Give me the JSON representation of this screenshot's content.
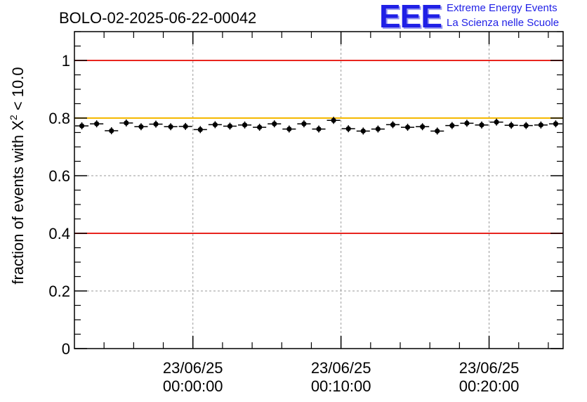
{
  "chart_data": {
    "type": "scatter",
    "title": "BOLO-02-2025-06-22-00042",
    "ylabel": "fraction of events with X² < 10.0",
    "ylabel_parts": {
      "pre": "fraction of events with X",
      "sup": "2",
      "post": " < 10.0"
    },
    "ylim": [
      0,
      1.1
    ],
    "xlim_minutes": [
      -8,
      25
    ],
    "y_ticks": [
      {
        "value": 0,
        "label": "0"
      },
      {
        "value": 0.2,
        "label": "0.2"
      },
      {
        "value": 0.4,
        "label": "0.4"
      },
      {
        "value": 0.6,
        "label": "0.6"
      },
      {
        "value": 0.8,
        "label": "0.8"
      },
      {
        "value": 1.0,
        "label": "1"
      }
    ],
    "x_ticks": [
      {
        "minutes": 0,
        "date": "23/06/25",
        "time": "00:00:00"
      },
      {
        "minutes": 10,
        "date": "23/06/25",
        "time": "00:10:00"
      },
      {
        "minutes": 20,
        "date": "23/06/25",
        "time": "00:20:00"
      }
    ],
    "grid": true,
    "reference_lines": [
      {
        "value": 1.0,
        "color": "#e8251f"
      },
      {
        "value": 0.8,
        "color": "#f5b800"
      },
      {
        "value": 0.4,
        "color": "#e8251f"
      }
    ],
    "series": [
      {
        "name": "fraction",
        "x_step_minutes": 1,
        "x_start_minutes": -7.5,
        "values": [
          0.773,
          0.78,
          0.756,
          0.783,
          0.77,
          0.779,
          0.77,
          0.771,
          0.76,
          0.777,
          0.772,
          0.776,
          0.768,
          0.78,
          0.762,
          0.78,
          0.762,
          0.792,
          0.763,
          0.755,
          0.762,
          0.777,
          0.768,
          0.77,
          0.755,
          0.774,
          0.782,
          0.776,
          0.786,
          0.775,
          0.774,
          0.776,
          0.78
        ]
      }
    ]
  },
  "logo": {
    "mark": "EEE",
    "line1": "Extreme Energy Events",
    "line2": "La Scienza nelle Scuole"
  },
  "colors": {
    "logo": "#1f1fe6",
    "grid": "#9a9a9a"
  }
}
